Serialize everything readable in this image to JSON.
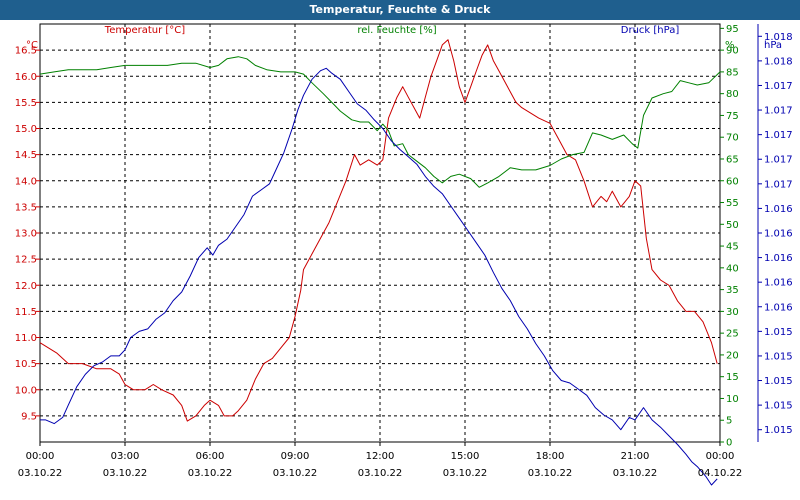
{
  "window": {
    "title": "Temperatur, Feuchte & Druck"
  },
  "chart_data": {
    "type": "line",
    "title": "Temperatur, Feuchte & Druck",
    "grid": true,
    "x": {
      "unit": "hours since 03.10.22 00:00",
      "range": [
        0,
        24
      ],
      "ticks": [
        0,
        3,
        6,
        9,
        12,
        15,
        18,
        21,
        24
      ],
      "tick_times": [
        "00:00",
        "03:00",
        "06:00",
        "09:00",
        "12:00",
        "15:00",
        "18:00",
        "21:00",
        "00:00"
      ],
      "tick_dates": [
        "03.10.22",
        "03.10.22",
        "03.10.22",
        "03.10.22",
        "03.10.22",
        "03.10.22",
        "03.10.22",
        "03.10.22",
        "04.10.22"
      ]
    },
    "axes": {
      "temperature": {
        "label": "Temperatur [°C]",
        "unit_label": "°C",
        "color": "#cc0000",
        "range": [
          9.0,
          17.0
        ],
        "tick_values": [
          9.5,
          10.0,
          10.5,
          11.0,
          11.5,
          12.0,
          12.5,
          13.0,
          13.5,
          14.0,
          14.5,
          15.0,
          15.5,
          16.0,
          16.5
        ],
        "tick_labels": [
          "9.5",
          "10.0",
          "10.5",
          "11.0",
          "11.5",
          "12.0",
          "12.5",
          "13.0",
          "13.5",
          "14.0",
          "14.5",
          "15.0",
          "15.5",
          "16.0",
          "16.5"
        ]
      },
      "humidity": {
        "label": "rel. Feuchte [%]",
        "unit_label": "%",
        "color": "#008000",
        "range": [
          0,
          96
        ],
        "tick_values": [
          0,
          5,
          10,
          15,
          20,
          25,
          30,
          35,
          40,
          45,
          50,
          55,
          60,
          65,
          70,
          75,
          80,
          85,
          90,
          95
        ],
        "tick_labels": [
          "0",
          "5",
          "10",
          "15",
          "20",
          "25",
          "30",
          "35",
          "40",
          "45",
          "50",
          "55",
          "60",
          "65",
          "70",
          "75",
          "80",
          "85",
          "90",
          "95"
        ]
      },
      "pressure": {
        "label": "Druck [hPa]",
        "unit_label": "hPa",
        "color": "#0000b0",
        "range": [
          1014.9,
          1018.3
        ],
        "tick_values": [
          1015.0,
          1015.2,
          1015.4,
          1015.6,
          1015.8,
          1016.0,
          1016.2,
          1016.4,
          1016.6,
          1016.8,
          1017.0,
          1017.2,
          1017.4,
          1017.6,
          1017.8,
          1018.0,
          1018.2
        ],
        "tick_labels": [
          "1.015",
          "1.015",
          "1.015",
          "1.015",
          "1.015",
          "1.016",
          "1.016",
          "1.016",
          "1.016",
          "1.016",
          "1.017",
          "1.017",
          "1.017",
          "1.017",
          "1.017",
          "1.018",
          "1.018"
        ]
      }
    },
    "series": [
      {
        "name": "Temperatur [°C]",
        "axis": "temperature",
        "color": "#cc0000",
        "points": [
          [
            0,
            10.9
          ],
          [
            0.3,
            10.8
          ],
          [
            0.6,
            10.7
          ],
          [
            1.0,
            10.5
          ],
          [
            1.5,
            10.5
          ],
          [
            2.0,
            10.4
          ],
          [
            2.5,
            10.4
          ],
          [
            2.8,
            10.3
          ],
          [
            3.0,
            10.1
          ],
          [
            3.3,
            10.0
          ],
          [
            3.7,
            10.0
          ],
          [
            4.0,
            10.1
          ],
          [
            4.3,
            10.0
          ],
          [
            4.7,
            9.9
          ],
          [
            5.0,
            9.7
          ],
          [
            5.2,
            9.4
          ],
          [
            5.5,
            9.5
          ],
          [
            5.8,
            9.7
          ],
          [
            6.0,
            9.8
          ],
          [
            6.3,
            9.7
          ],
          [
            6.5,
            9.5
          ],
          [
            6.8,
            9.5
          ],
          [
            7.0,
            9.6
          ],
          [
            7.3,
            9.8
          ],
          [
            7.6,
            10.2
          ],
          [
            7.9,
            10.5
          ],
          [
            8.2,
            10.6
          ],
          [
            8.5,
            10.8
          ],
          [
            8.8,
            11.0
          ],
          [
            9.0,
            11.4
          ],
          [
            9.2,
            11.9
          ],
          [
            9.3,
            12.3
          ],
          [
            9.6,
            12.6
          ],
          [
            9.9,
            12.9
          ],
          [
            10.2,
            13.2
          ],
          [
            10.5,
            13.6
          ],
          [
            10.8,
            14.0
          ],
          [
            11.1,
            14.5
          ],
          [
            11.3,
            14.3
          ],
          [
            11.6,
            14.4
          ],
          [
            11.9,
            14.3
          ],
          [
            12.1,
            14.4
          ],
          [
            12.3,
            15.2
          ],
          [
            12.6,
            15.6
          ],
          [
            12.8,
            15.8
          ],
          [
            13.0,
            15.6
          ],
          [
            13.2,
            15.4
          ],
          [
            13.4,
            15.2
          ],
          [
            13.6,
            15.6
          ],
          [
            13.8,
            16.0
          ],
          [
            14.0,
            16.3
          ],
          [
            14.2,
            16.6
          ],
          [
            14.4,
            16.7
          ],
          [
            14.6,
            16.3
          ],
          [
            14.8,
            15.8
          ],
          [
            15.0,
            15.5
          ],
          [
            15.2,
            15.8
          ],
          [
            15.4,
            16.1
          ],
          [
            15.6,
            16.4
          ],
          [
            15.8,
            16.6
          ],
          [
            16.0,
            16.3
          ],
          [
            16.2,
            16.1
          ],
          [
            16.4,
            15.9
          ],
          [
            16.6,
            15.7
          ],
          [
            16.8,
            15.5
          ],
          [
            17.0,
            15.4
          ],
          [
            17.3,
            15.3
          ],
          [
            17.6,
            15.2
          ],
          [
            18.0,
            15.1
          ],
          [
            18.3,
            14.8
          ],
          [
            18.6,
            14.5
          ],
          [
            18.9,
            14.4
          ],
          [
            19.2,
            14.0
          ],
          [
            19.5,
            13.5
          ],
          [
            19.8,
            13.7
          ],
          [
            20.0,
            13.6
          ],
          [
            20.2,
            13.8
          ],
          [
            20.5,
            13.5
          ],
          [
            20.8,
            13.7
          ],
          [
            21.0,
            14.0
          ],
          [
            21.2,
            13.9
          ],
          [
            21.4,
            12.9
          ],
          [
            21.6,
            12.3
          ],
          [
            21.9,
            12.1
          ],
          [
            22.2,
            12.0
          ],
          [
            22.5,
            11.7
          ],
          [
            22.8,
            11.5
          ],
          [
            23.1,
            11.5
          ],
          [
            23.4,
            11.3
          ],
          [
            23.7,
            10.9
          ],
          [
            23.9,
            10.5
          ]
        ]
      },
      {
        "name": "rel. Feuchte [%]",
        "axis": "humidity",
        "color": "#008000",
        "points": [
          [
            0,
            84.5
          ],
          [
            0.5,
            85.0
          ],
          [
            1.0,
            85.5
          ],
          [
            1.5,
            85.5
          ],
          [
            2.0,
            85.5
          ],
          [
            2.5,
            86.0
          ],
          [
            3.0,
            86.5
          ],
          [
            3.5,
            86.5
          ],
          [
            4.0,
            86.5
          ],
          [
            4.5,
            86.5
          ],
          [
            5.0,
            87.0
          ],
          [
            5.5,
            87.0
          ],
          [
            6.0,
            86.0
          ],
          [
            6.3,
            86.5
          ],
          [
            6.6,
            88.0
          ],
          [
            7.0,
            88.5
          ],
          [
            7.3,
            88.0
          ],
          [
            7.6,
            86.5
          ],
          [
            8.0,
            85.5
          ],
          [
            8.5,
            85.0
          ],
          [
            9.0,
            85.0
          ],
          [
            9.3,
            84.5
          ],
          [
            9.6,
            82.5
          ],
          [
            10.0,
            80.0
          ],
          [
            10.3,
            78.0
          ],
          [
            10.6,
            76.0
          ],
          [
            11.0,
            74.0
          ],
          [
            11.3,
            73.5
          ],
          [
            11.6,
            73.5
          ],
          [
            11.9,
            71.5
          ],
          [
            12.1,
            73.0
          ],
          [
            12.3,
            71.5
          ],
          [
            12.5,
            68.0
          ],
          [
            12.8,
            68.5
          ],
          [
            13.0,
            66.0
          ],
          [
            13.3,
            64.5
          ],
          [
            13.6,
            63.0
          ],
          [
            13.9,
            61.0
          ],
          [
            14.2,
            59.5
          ],
          [
            14.5,
            61.0
          ],
          [
            14.8,
            61.5
          ],
          [
            15.2,
            60.5
          ],
          [
            15.5,
            58.5
          ],
          [
            15.8,
            59.5
          ],
          [
            16.2,
            61.0
          ],
          [
            16.6,
            63.0
          ],
          [
            17.0,
            62.5
          ],
          [
            17.5,
            62.5
          ],
          [
            18.0,
            63.5
          ],
          [
            18.4,
            65.0
          ],
          [
            18.8,
            66.0
          ],
          [
            19.2,
            66.5
          ],
          [
            19.5,
            71.0
          ],
          [
            19.8,
            70.5
          ],
          [
            20.2,
            69.5
          ],
          [
            20.6,
            70.5
          ],
          [
            20.9,
            68.5
          ],
          [
            21.1,
            67.5
          ],
          [
            21.3,
            75.0
          ],
          [
            21.6,
            79.0
          ],
          [
            22.0,
            80.0
          ],
          [
            22.3,
            80.5
          ],
          [
            22.6,
            83.0
          ],
          [
            22.9,
            82.5
          ],
          [
            23.2,
            82.0
          ],
          [
            23.6,
            82.5
          ],
          [
            24.0,
            85.0
          ]
        ]
      },
      {
        "name": "Druck [hPa]",
        "axis": "pressure",
        "color": "#0000b0",
        "points": [
          [
            0,
            1015.08
          ],
          [
            0.2,
            1015.08
          ],
          [
            0.5,
            1015.05
          ],
          [
            0.8,
            1015.1
          ],
          [
            1.0,
            1015.2
          ],
          [
            1.3,
            1015.35
          ],
          [
            1.6,
            1015.45
          ],
          [
            1.9,
            1015.52
          ],
          [
            2.2,
            1015.55
          ],
          [
            2.5,
            1015.6
          ],
          [
            2.8,
            1015.6
          ],
          [
            3.0,
            1015.65
          ],
          [
            3.2,
            1015.75
          ],
          [
            3.5,
            1015.8
          ],
          [
            3.8,
            1015.82
          ],
          [
            4.1,
            1015.9
          ],
          [
            4.4,
            1015.95
          ],
          [
            4.7,
            1016.05
          ],
          [
            5.0,
            1016.12
          ],
          [
            5.3,
            1016.25
          ],
          [
            5.6,
            1016.4
          ],
          [
            5.9,
            1016.48
          ],
          [
            6.1,
            1016.42
          ],
          [
            6.3,
            1016.5
          ],
          [
            6.6,
            1016.55
          ],
          [
            6.9,
            1016.65
          ],
          [
            7.2,
            1016.75
          ],
          [
            7.5,
            1016.9
          ],
          [
            7.8,
            1016.95
          ],
          [
            8.1,
            1017.0
          ],
          [
            8.3,
            1017.1
          ],
          [
            8.6,
            1017.25
          ],
          [
            8.9,
            1017.45
          ],
          [
            9.1,
            1017.6
          ],
          [
            9.3,
            1017.72
          ],
          [
            9.6,
            1017.85
          ],
          [
            9.9,
            1017.92
          ],
          [
            10.1,
            1017.94
          ],
          [
            10.3,
            1017.9
          ],
          [
            10.6,
            1017.85
          ],
          [
            10.9,
            1017.75
          ],
          [
            11.2,
            1017.65
          ],
          [
            11.5,
            1017.6
          ],
          [
            11.8,
            1017.52
          ],
          [
            12.1,
            1017.45
          ],
          [
            12.4,
            1017.35
          ],
          [
            12.7,
            1017.28
          ],
          [
            13.0,
            1017.22
          ],
          [
            13.3,
            1017.16
          ],
          [
            13.6,
            1017.06
          ],
          [
            13.9,
            1016.98
          ],
          [
            14.2,
            1016.92
          ],
          [
            14.5,
            1016.82
          ],
          [
            14.8,
            1016.72
          ],
          [
            15.1,
            1016.62
          ],
          [
            15.4,
            1016.52
          ],
          [
            15.7,
            1016.42
          ],
          [
            16.0,
            1016.28
          ],
          [
            16.3,
            1016.15
          ],
          [
            16.6,
            1016.05
          ],
          [
            16.9,
            1015.92
          ],
          [
            17.2,
            1015.82
          ],
          [
            17.5,
            1015.7
          ],
          [
            17.8,
            1015.6
          ],
          [
            18.1,
            1015.48
          ],
          [
            18.4,
            1015.4
          ],
          [
            18.7,
            1015.38
          ],
          [
            19.0,
            1015.33
          ],
          [
            19.3,
            1015.28
          ],
          [
            19.6,
            1015.18
          ],
          [
            19.9,
            1015.12
          ],
          [
            20.2,
            1015.08
          ],
          [
            20.5,
            1015.0
          ],
          [
            20.8,
            1015.1
          ],
          [
            21.0,
            1015.08
          ],
          [
            21.3,
            1015.18
          ],
          [
            21.6,
            1015.08
          ],
          [
            21.9,
            1015.02
          ],
          [
            22.2,
            1014.95
          ],
          [
            22.5,
            1014.88
          ],
          [
            22.8,
            1014.8
          ],
          [
            23.0,
            1014.74
          ],
          [
            23.2,
            1014.7
          ],
          [
            23.5,
            1014.62
          ],
          [
            23.7,
            1014.55
          ],
          [
            23.9,
            1014.6
          ]
        ]
      }
    ]
  }
}
